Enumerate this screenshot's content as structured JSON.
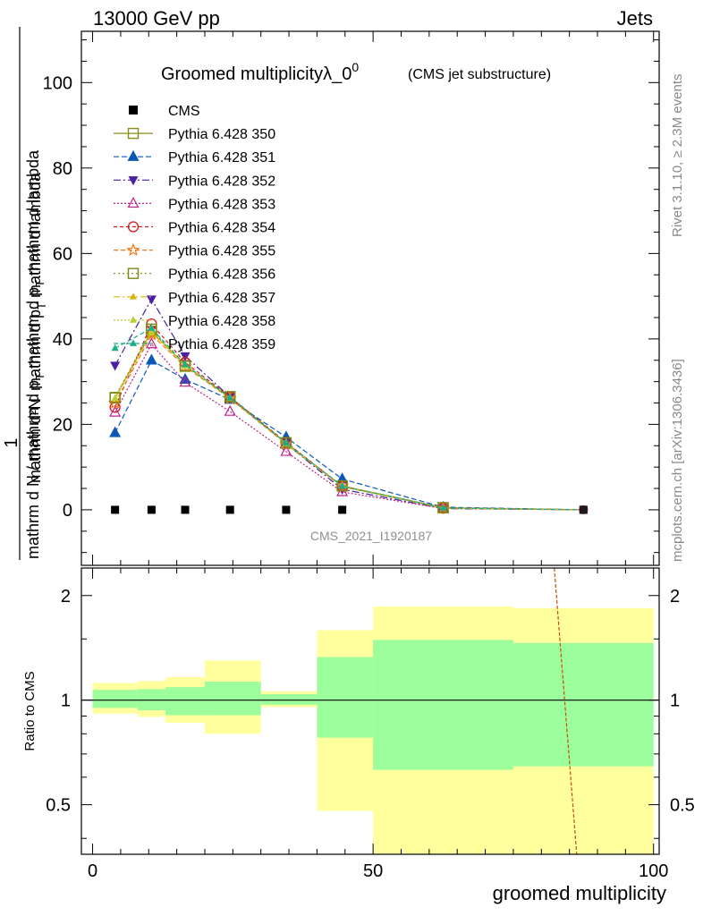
{
  "header": {
    "left": "13000 GeV pp",
    "right": "Jets"
  },
  "side_labels": {
    "rivet": "Rivet 3.1.10, ≥ 2.3M events",
    "mcplots": "mcplots.cern.ch [arXiv:1306.3436]"
  },
  "chart_data": [
    {
      "type": "line",
      "title_main": "Groomed multiplicityλ_0",
      "title_sup": "0",
      "title_sub": "(CMS jet substructure)",
      "watermark": "CMS_2021_I1920187",
      "ylabel_num": "mathrm d²N",
      "ylabel_den": "mathrm d N / mathrm d p_T mathrm d p_T mathrm d lambda",
      "ylabel_prefix": "1",
      "ylabel_display_top": "mathrm d²N",
      "ylabel_display_top_b": "mathrm d p",
      "ylabel_display_top_c": "T",
      "ylabel_display_top_d": " mathrm d lambda",
      "ylabel_display_bot": "mathrm d N / mathrm d p",
      "ylabel_display_bot_b": "T",
      "ylabel_display_bot_c": " mathrm d p",
      "ylabel_display_bot_d": "T",
      "ylabel_display_bot_e": " mathrm d lambda",
      "xlim": [
        -2,
        101
      ],
      "ylim": [
        -13,
        112
      ],
      "yticks": [
        0,
        20,
        40,
        60,
        80,
        100
      ],
      "ytick_labels": [
        "0",
        "20",
        "40",
        "60",
        "80",
        "100"
      ],
      "x": [
        4,
        10.5,
        16.5,
        24.5,
        34.5,
        44.5,
        62.5,
        87.5
      ],
      "data": {
        "name": "CMS",
        "values": [
          0,
          0,
          0,
          0,
          0,
          0,
          0.2,
          0
        ]
      },
      "series": [
        {
          "name": "Pythia 6.428 350",
          "color": "#8b8b1a",
          "dash": "",
          "marker": "square-open",
          "values": [
            26.2,
            41.8,
            33.8,
            26.3,
            15.6,
            5.6,
            0.5,
            0
          ]
        },
        {
          "name": "Pythia 6.428 351",
          "color": "#0b57b8",
          "dash": "6,3",
          "marker": "triangle-up",
          "values": [
            18.0,
            35.0,
            30.5,
            25.8,
            17.0,
            7.2,
            0.6,
            0
          ]
        },
        {
          "name": "Pythia 6.428 352",
          "color": "#4b1fa6",
          "dash": "8,3,2,3",
          "marker": "triangle-down",
          "values": [
            33.8,
            49.3,
            36.0,
            26.4,
            15.5,
            4.8,
            0.3,
            0
          ]
        },
        {
          "name": "Pythia 6.428 353",
          "color": "#c01d8a",
          "dash": "2,2",
          "marker": "triangle-up-open",
          "values": [
            22.8,
            38.8,
            29.8,
            23.0,
            13.6,
            4.2,
            0.3,
            0
          ]
        },
        {
          "name": "Pythia 6.428 354",
          "color": "#d81818",
          "dash": "4,3",
          "marker": "circle-open",
          "values": [
            24.0,
            43.5,
            34.5,
            26.4,
            15.8,
            5.5,
            0.4,
            0
          ]
        },
        {
          "name": "Pythia 6.428 355",
          "color": "#f07818",
          "dash": "5,3",
          "marker": "star-open",
          "values": [
            25.0,
            41.0,
            33.5,
            26.0,
            15.4,
            5.4,
            0.4,
            0
          ]
        },
        {
          "name": "Pythia 6.428 356",
          "color": "#7a8a10",
          "dash": "2,3",
          "marker": "square-open",
          "values": [
            26.3,
            42.3,
            33.6,
            26.5,
            15.7,
            5.6,
            0.5,
            0
          ]
        },
        {
          "name": "Pythia 6.428 357",
          "color": "#d8b400",
          "dash": "7,3,2,3",
          "marker": "small-tri",
          "values": [
            26.0,
            41.5,
            33.9,
            26.1,
            15.6,
            5.5,
            0.4,
            0
          ]
        },
        {
          "name": "Pythia 6.428 358",
          "color": "#b8d030",
          "dash": "2,2",
          "marker": "small-tri",
          "values": [
            26.1,
            41.8,
            33.7,
            26.2,
            15.5,
            5.6,
            0.4,
            0
          ]
        },
        {
          "name": "Pythia 6.428 359",
          "color": "#18b088",
          "dash": "5,3",
          "marker": "small-tri",
          "values": [
            37.8,
            42.5,
            34.0,
            26.2,
            15.6,
            5.5,
            0.4,
            0
          ]
        }
      ]
    },
    {
      "type": "area",
      "ylabel": "Ratio to CMS",
      "xlabel": "groomed multiplicity",
      "xlim": [
        -2,
        101
      ],
      "ylim": [
        0.36,
        2.4
      ],
      "yscale": "log",
      "yticks": [
        0.5,
        1,
        2
      ],
      "ytick_labels": [
        "0.5",
        "1",
        "2"
      ],
      "xticks": [
        0,
        50,
        100
      ],
      "xtick_labels": [
        "0",
        "50",
        "100"
      ],
      "bin_edges": [
        0,
        8,
        13,
        20,
        30,
        40,
        50,
        75,
        100
      ],
      "band_inner": [
        [
          0.95,
          1.07
        ],
        [
          0.935,
          1.075
        ],
        [
          0.905,
          1.09
        ],
        [
          0.905,
          1.13
        ],
        [
          0.97,
          1.04
        ],
        [
          0.78,
          1.33
        ],
        [
          0.63,
          1.49
        ],
        [
          0.645,
          1.46
        ]
      ],
      "band_outer": [
        [
          0.915,
          1.12
        ],
        [
          0.895,
          1.135
        ],
        [
          0.86,
          1.165
        ],
        [
          0.8,
          1.3
        ],
        [
          0.955,
          1.06
        ],
        [
          0.48,
          1.59
        ],
        [
          0.36,
          1.86
        ],
        [
          0.36,
          1.84
        ]
      ],
      "colors": {
        "inner": "#9cfd9c",
        "outer": "#ffff9e"
      },
      "ratio_line": {
        "x": [
          82.3,
          86.3
        ],
        "y": [
          2.4,
          0.36
        ],
        "color": "#c85000"
      }
    }
  ]
}
